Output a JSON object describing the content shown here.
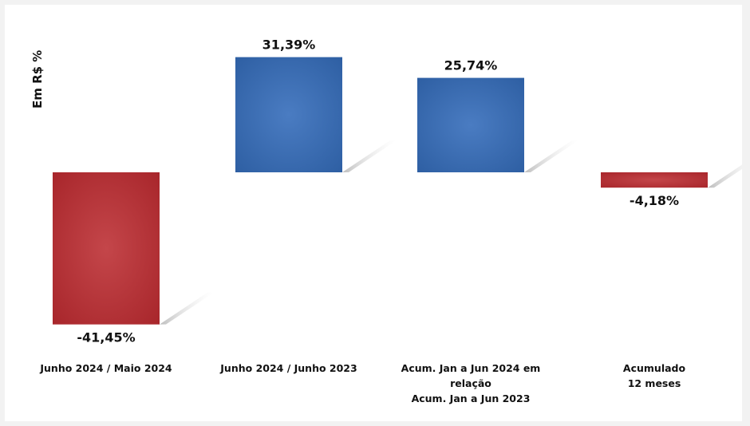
{
  "chart_data": {
    "type": "bar",
    "ylabel": "Em R$ %",
    "categories": [
      [
        "Junho 2024 / Maio 2024"
      ],
      [
        "Junho 2024 / Junho 2023"
      ],
      [
        "Acum. Jan a Jun 2024 em",
        "relação",
        "Acum. Jan a Jun 2023"
      ],
      [
        "Acumulado",
        "12 meses"
      ]
    ],
    "values": [
      -41.45,
      31.39,
      25.74,
      -4.18
    ],
    "value_labels": [
      "-41,45%",
      "31,39%",
      "25,74%",
      "-4,18%"
    ],
    "ylim": [
      -42,
      32
    ],
    "grid": false,
    "legend": "none",
    "colors": {
      "positive": "#2e5fa3",
      "positive_light": "#4a7cc2",
      "negative": "#a8262b",
      "negative_light": "#c4464a",
      "shadow": "#c8c8c8"
    }
  }
}
